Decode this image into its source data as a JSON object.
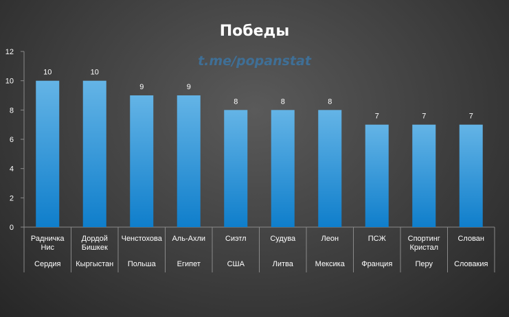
{
  "watermark": "t.me/popanstat",
  "chart_data": {
    "type": "bar",
    "title": "Победы",
    "categories": [
      {
        "team": [
          "Радничка",
          "Нис"
        ],
        "country": "Сердия"
      },
      {
        "team": [
          "Дордой",
          "Бишкек"
        ],
        "country": "Кыргыстан"
      },
      {
        "team": [
          "Ченстохова"
        ],
        "country": "Польша"
      },
      {
        "team": [
          "Аль-Ахли"
        ],
        "country": "Египет"
      },
      {
        "team": [
          "Сиэтл"
        ],
        "country": "США"
      },
      {
        "team": [
          "Судува"
        ],
        "country": "Литва"
      },
      {
        "team": [
          "Леон"
        ],
        "country": "Мексика"
      },
      {
        "team": [
          "ПСЖ"
        ],
        "country": "Франция"
      },
      {
        "team": [
          "Спортинг",
          "Кристал"
        ],
        "country": "Перу"
      },
      {
        "team": [
          "Слован"
        ],
        "country": "Словакия"
      }
    ],
    "values": [
      10,
      10,
      9,
      9,
      8,
      8,
      8,
      7,
      7,
      7
    ],
    "ylim": [
      0,
      12
    ],
    "yticks": [
      0,
      2,
      4,
      6,
      8,
      10,
      12
    ],
    "grid": true,
    "legend": "none",
    "colors": {
      "bar_top": "#64b4e6",
      "bar_bottom": "#0f7ecb",
      "text": "#ffffff",
      "axis": "#8a8a8a"
    }
  }
}
